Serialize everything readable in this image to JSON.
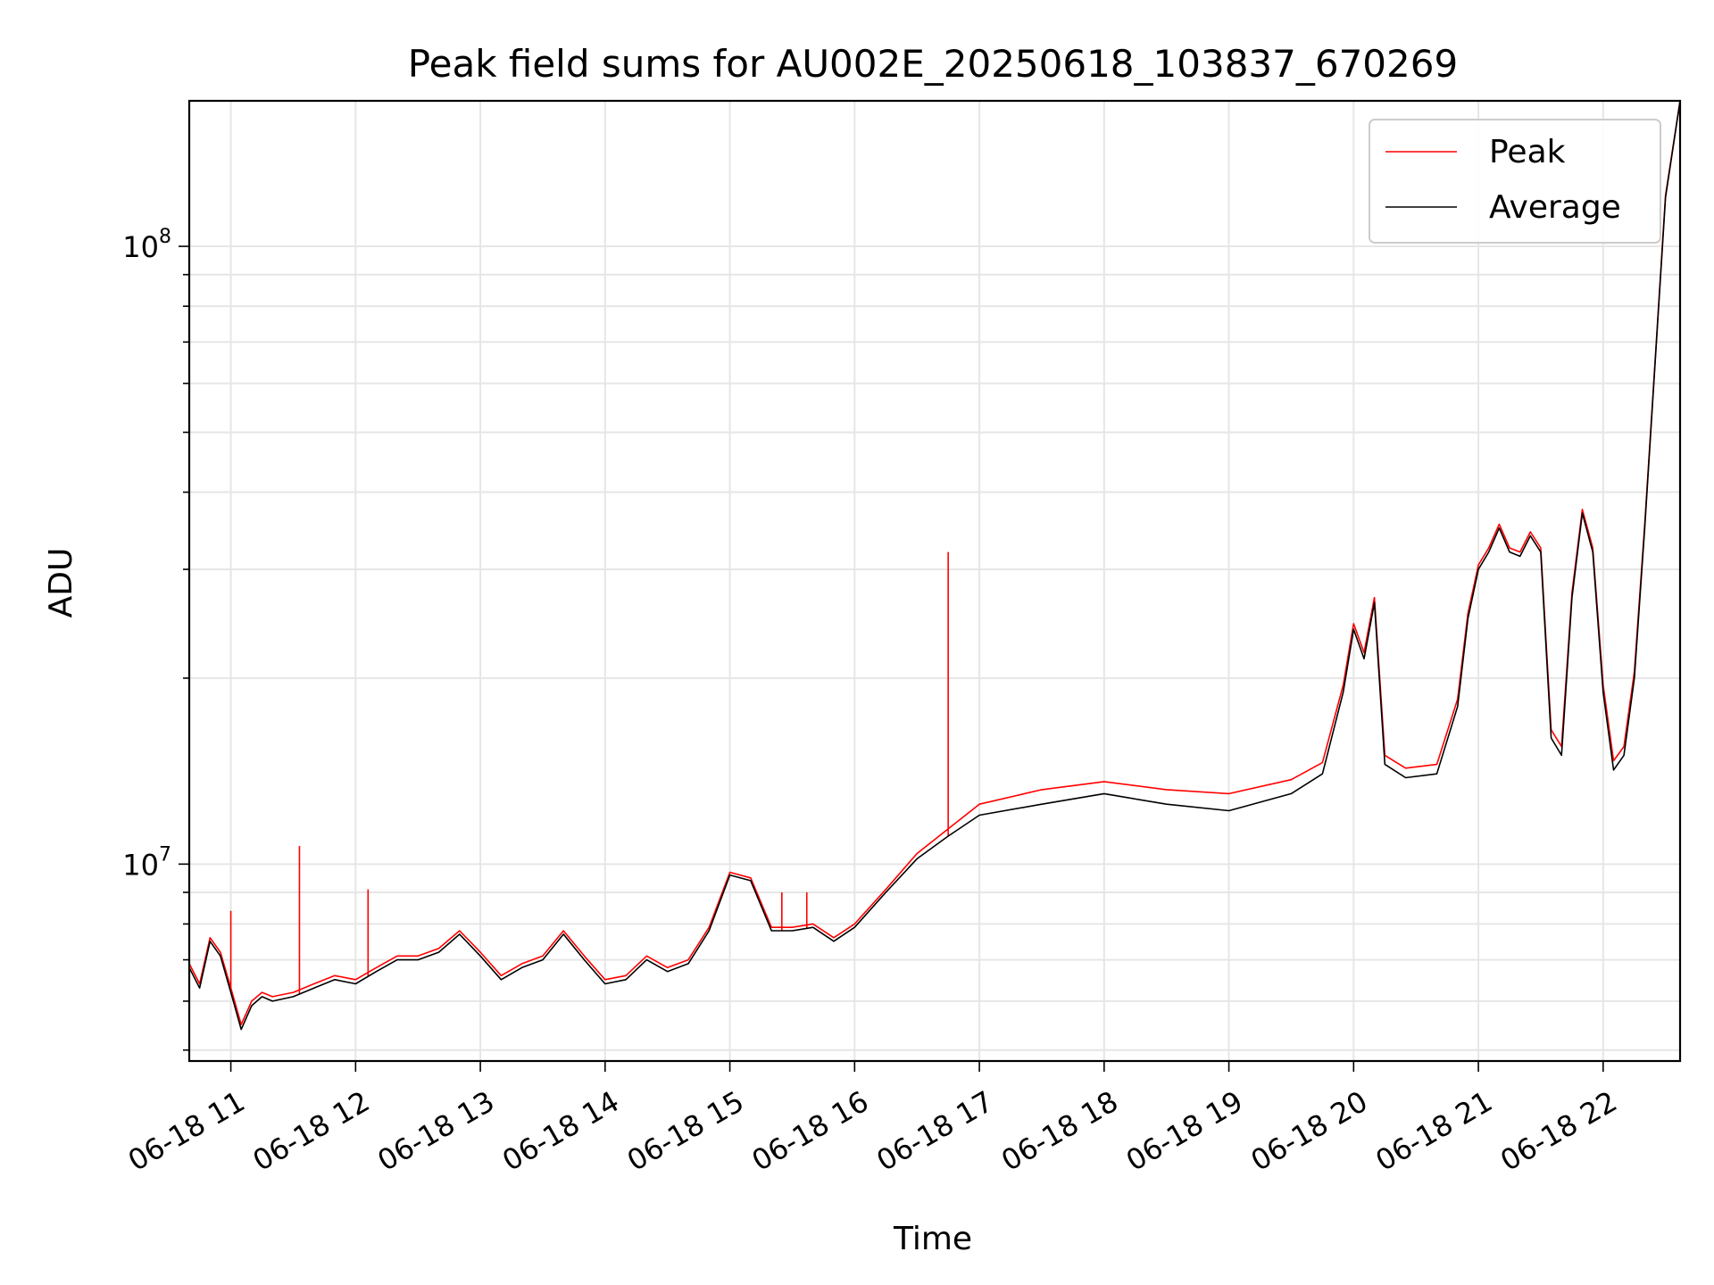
{
  "chart_data": {
    "type": "line",
    "title": "Peak field sums for AU002E_20250618_103837_670269",
    "xlabel": "Time",
    "ylabel": "ADU",
    "x_ticks": [
      "06-18 11",
      "06-18 12",
      "06-18 13",
      "06-18 14",
      "06-18 15",
      "06-18 16",
      "06-18 17",
      "06-18 18",
      "06-18 19",
      "06-18 20",
      "06-18 21",
      "06-18 22"
    ],
    "y_tick_labels": [
      {
        "value": 10000000,
        "base": "10",
        "exp": "7"
      },
      {
        "value": 100000000,
        "base": "10",
        "exp": "8"
      }
    ],
    "xlim": [
      "2025-06-18 10:40",
      "2025-06-18 22:37"
    ],
    "ylim": [
      4800000,
      172000000
    ],
    "yscale": "log",
    "grid": true,
    "legend_position": "top-right",
    "colors": {
      "peak": "#ff0000",
      "average": "#000000",
      "grid": "#e6e6e6"
    },
    "series": [
      {
        "name": "Average",
        "color": "#000000",
        "x": [
          "2025-06-18 10:40",
          "2025-06-18 10:45",
          "2025-06-18 10:50",
          "2025-06-18 10:55",
          "2025-06-18 11:00",
          "2025-06-18 11:05",
          "2025-06-18 11:10",
          "2025-06-18 11:15",
          "2025-06-18 11:20",
          "2025-06-18 11:30",
          "2025-06-18 11:40",
          "2025-06-18 11:50",
          "2025-06-18 12:00",
          "2025-06-18 12:10",
          "2025-06-18 12:20",
          "2025-06-18 12:30",
          "2025-06-18 12:40",
          "2025-06-18 12:50",
          "2025-06-18 13:00",
          "2025-06-18 13:10",
          "2025-06-18 13:20",
          "2025-06-18 13:30",
          "2025-06-18 13:40",
          "2025-06-18 13:50",
          "2025-06-18 14:00",
          "2025-06-18 14:10",
          "2025-06-18 14:20",
          "2025-06-18 14:30",
          "2025-06-18 14:40",
          "2025-06-18 14:50",
          "2025-06-18 15:00",
          "2025-06-18 15:10",
          "2025-06-18 15:20",
          "2025-06-18 15:30",
          "2025-06-18 15:40",
          "2025-06-18 15:50",
          "2025-06-18 16:00",
          "2025-06-18 16:15",
          "2025-06-18 16:30",
          "2025-06-18 16:45",
          "2025-06-18 17:00",
          "2025-06-18 17:30",
          "2025-06-18 18:00",
          "2025-06-18 18:30",
          "2025-06-18 19:00",
          "2025-06-18 19:30",
          "2025-06-18 19:45",
          "2025-06-18 19:55",
          "2025-06-18 20:00",
          "2025-06-18 20:05",
          "2025-06-18 20:10",
          "2025-06-18 20:15",
          "2025-06-18 20:25",
          "2025-06-18 20:40",
          "2025-06-18 20:50",
          "2025-06-18 20:55",
          "2025-06-18 21:00",
          "2025-06-18 21:05",
          "2025-06-18 21:10",
          "2025-06-18 21:15",
          "2025-06-18 21:20",
          "2025-06-18 21:25",
          "2025-06-18 21:30",
          "2025-06-18 21:35",
          "2025-06-18 21:40",
          "2025-06-18 21:45",
          "2025-06-18 21:50",
          "2025-06-18 21:55",
          "2025-06-18 22:00",
          "2025-06-18 22:05",
          "2025-06-18 22:10",
          "2025-06-18 22:15",
          "2025-06-18 22:20",
          "2025-06-18 22:25",
          "2025-06-18 22:30",
          "2025-06-18 22:37"
        ],
        "values": [
          6800000,
          6300000,
          7500000,
          7100000,
          6200000,
          5400000,
          5900000,
          6100000,
          6000000,
          6100000,
          6300000,
          6500000,
          6400000,
          6700000,
          7000000,
          7000000,
          7200000,
          7700000,
          7100000,
          6500000,
          6800000,
          7000000,
          7700000,
          7000000,
          6400000,
          6500000,
          7000000,
          6700000,
          6900000,
          7800000,
          9600000,
          9400000,
          7800000,
          7800000,
          7900000,
          7500000,
          7900000,
          9000000,
          10200000,
          11100000,
          12000000,
          12500000,
          13000000,
          12500000,
          12200000,
          13000000,
          14000000,
          19000000,
          24000000,
          21500000,
          26500000,
          14500000,
          13800000,
          14000000,
          18000000,
          25000000,
          30000000,
          32000000,
          35000000,
          32000000,
          31500000,
          34000000,
          32000000,
          16000000,
          15000000,
          27000000,
          37000000,
          32000000,
          19000000,
          14200000,
          15000000,
          20000000,
          35000000,
          65000000,
          120000000,
          172000000
        ]
      },
      {
        "name": "Peak",
        "color": "#ff0000",
        "x": [
          "2025-06-18 10:40",
          "2025-06-18 10:45",
          "2025-06-18 10:50",
          "2025-06-18 10:55",
          "2025-06-18 11:00",
          "2025-06-18 11:05",
          "2025-06-18 11:10",
          "2025-06-18 11:15",
          "2025-06-18 11:20",
          "2025-06-18 11:30",
          "2025-06-18 11:40",
          "2025-06-18 11:50",
          "2025-06-18 12:00",
          "2025-06-18 12:10",
          "2025-06-18 12:20",
          "2025-06-18 12:30",
          "2025-06-18 12:40",
          "2025-06-18 12:50",
          "2025-06-18 13:00",
          "2025-06-18 13:10",
          "2025-06-18 13:20",
          "2025-06-18 13:30",
          "2025-06-18 13:40",
          "2025-06-18 13:50",
          "2025-06-18 14:00",
          "2025-06-18 14:10",
          "2025-06-18 14:20",
          "2025-06-18 14:30",
          "2025-06-18 14:40",
          "2025-06-18 14:50",
          "2025-06-18 15:00",
          "2025-06-18 15:10",
          "2025-06-18 15:20",
          "2025-06-18 15:30",
          "2025-06-18 15:40",
          "2025-06-18 15:50",
          "2025-06-18 16:00",
          "2025-06-18 16:15",
          "2025-06-18 16:30",
          "2025-06-18 16:45",
          "2025-06-18 17:00",
          "2025-06-18 17:30",
          "2025-06-18 18:00",
          "2025-06-18 18:30",
          "2025-06-18 19:00",
          "2025-06-18 19:30",
          "2025-06-18 19:45",
          "2025-06-18 19:55",
          "2025-06-18 20:00",
          "2025-06-18 20:05",
          "2025-06-18 20:10",
          "2025-06-18 20:15",
          "2025-06-18 20:25",
          "2025-06-18 20:40",
          "2025-06-18 20:50",
          "2025-06-18 20:55",
          "2025-06-18 21:00",
          "2025-06-18 21:05",
          "2025-06-18 21:10",
          "2025-06-18 21:15",
          "2025-06-18 21:20",
          "2025-06-18 21:25",
          "2025-06-18 21:30",
          "2025-06-18 21:35",
          "2025-06-18 21:40",
          "2025-06-18 21:45",
          "2025-06-18 21:50",
          "2025-06-18 21:55",
          "2025-06-18 22:00",
          "2025-06-18 22:05",
          "2025-06-18 22:10",
          "2025-06-18 22:15",
          "2025-06-18 22:20",
          "2025-06-18 22:25",
          "2025-06-18 22:30",
          "2025-06-18 22:37"
        ],
        "values": [
          6900000,
          6400000,
          7600000,
          7200000,
          6300000,
          5500000,
          6000000,
          6200000,
          6100000,
          6200000,
          6400000,
          6600000,
          6500000,
          6800000,
          7100000,
          7100000,
          7300000,
          7800000,
          7200000,
          6600000,
          6900000,
          7100000,
          7800000,
          7100000,
          6500000,
          6600000,
          7100000,
          6800000,
          7000000,
          7900000,
          9700000,
          9500000,
          7900000,
          7900000,
          8000000,
          7600000,
          8000000,
          9100000,
          10400000,
          11400000,
          12500000,
          13200000,
          13600000,
          13200000,
          13000000,
          13700000,
          14600000,
          19500000,
          24500000,
          22000000,
          27000000,
          15000000,
          14300000,
          14500000,
          18500000,
          25500000,
          30500000,
          32500000,
          35500000,
          32500000,
          32000000,
          34500000,
          32500000,
          16500000,
          15500000,
          27500000,
          37500000,
          32500000,
          19500000,
          14700000,
          15500000,
          20500000,
          35500000,
          65500000,
          121000000,
          172000000
        ],
        "spikes": [
          {
            "x": "2025-06-18 11:33",
            "y": 10700000
          },
          {
            "x": "2025-06-18 12:06",
            "y": 9100000
          },
          {
            "x": "2025-06-18 15:25",
            "y": 9000000
          },
          {
            "x": "2025-06-18 15:37",
            "y": 9000000
          },
          {
            "x": "2025-06-18 16:45",
            "y": 32000000
          },
          {
            "x": "2025-06-18 11:00",
            "y": 8400000
          }
        ]
      }
    ]
  }
}
